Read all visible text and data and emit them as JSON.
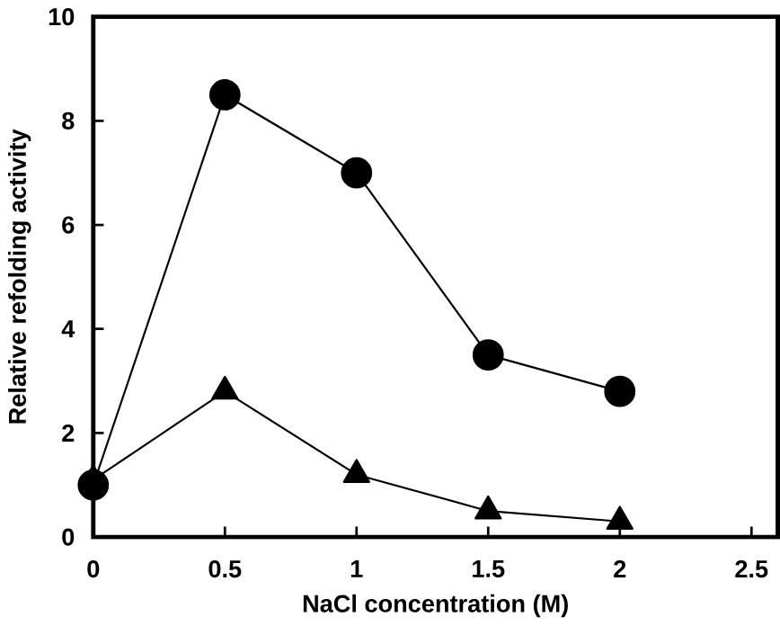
{
  "chart_data": {
    "type": "line",
    "xlabel": "NaCl concentration (M)",
    "ylabel": "Relative refolding activity",
    "x": [
      0,
      0.5,
      1,
      1.5,
      2
    ],
    "series": [
      {
        "color": "#000000",
        "marker": "circle",
        "values": [
          1.0,
          8.5,
          7.0,
          3.5,
          2.8
        ]
      },
      {
        "color": "#000000",
        "marker": "triangle",
        "values": [
          1.1,
          2.8,
          1.2,
          0.5,
          0.3
        ]
      }
    ],
    "xlim": [
      0,
      2.6
    ],
    "xticks": [
      0,
      0.5,
      1,
      1.5,
      2,
      2.5
    ],
    "ylim": [
      0,
      10
    ],
    "yticks": [
      0,
      2,
      4,
      6,
      8,
      10
    ],
    "grid": false,
    "line_style": "solid"
  }
}
